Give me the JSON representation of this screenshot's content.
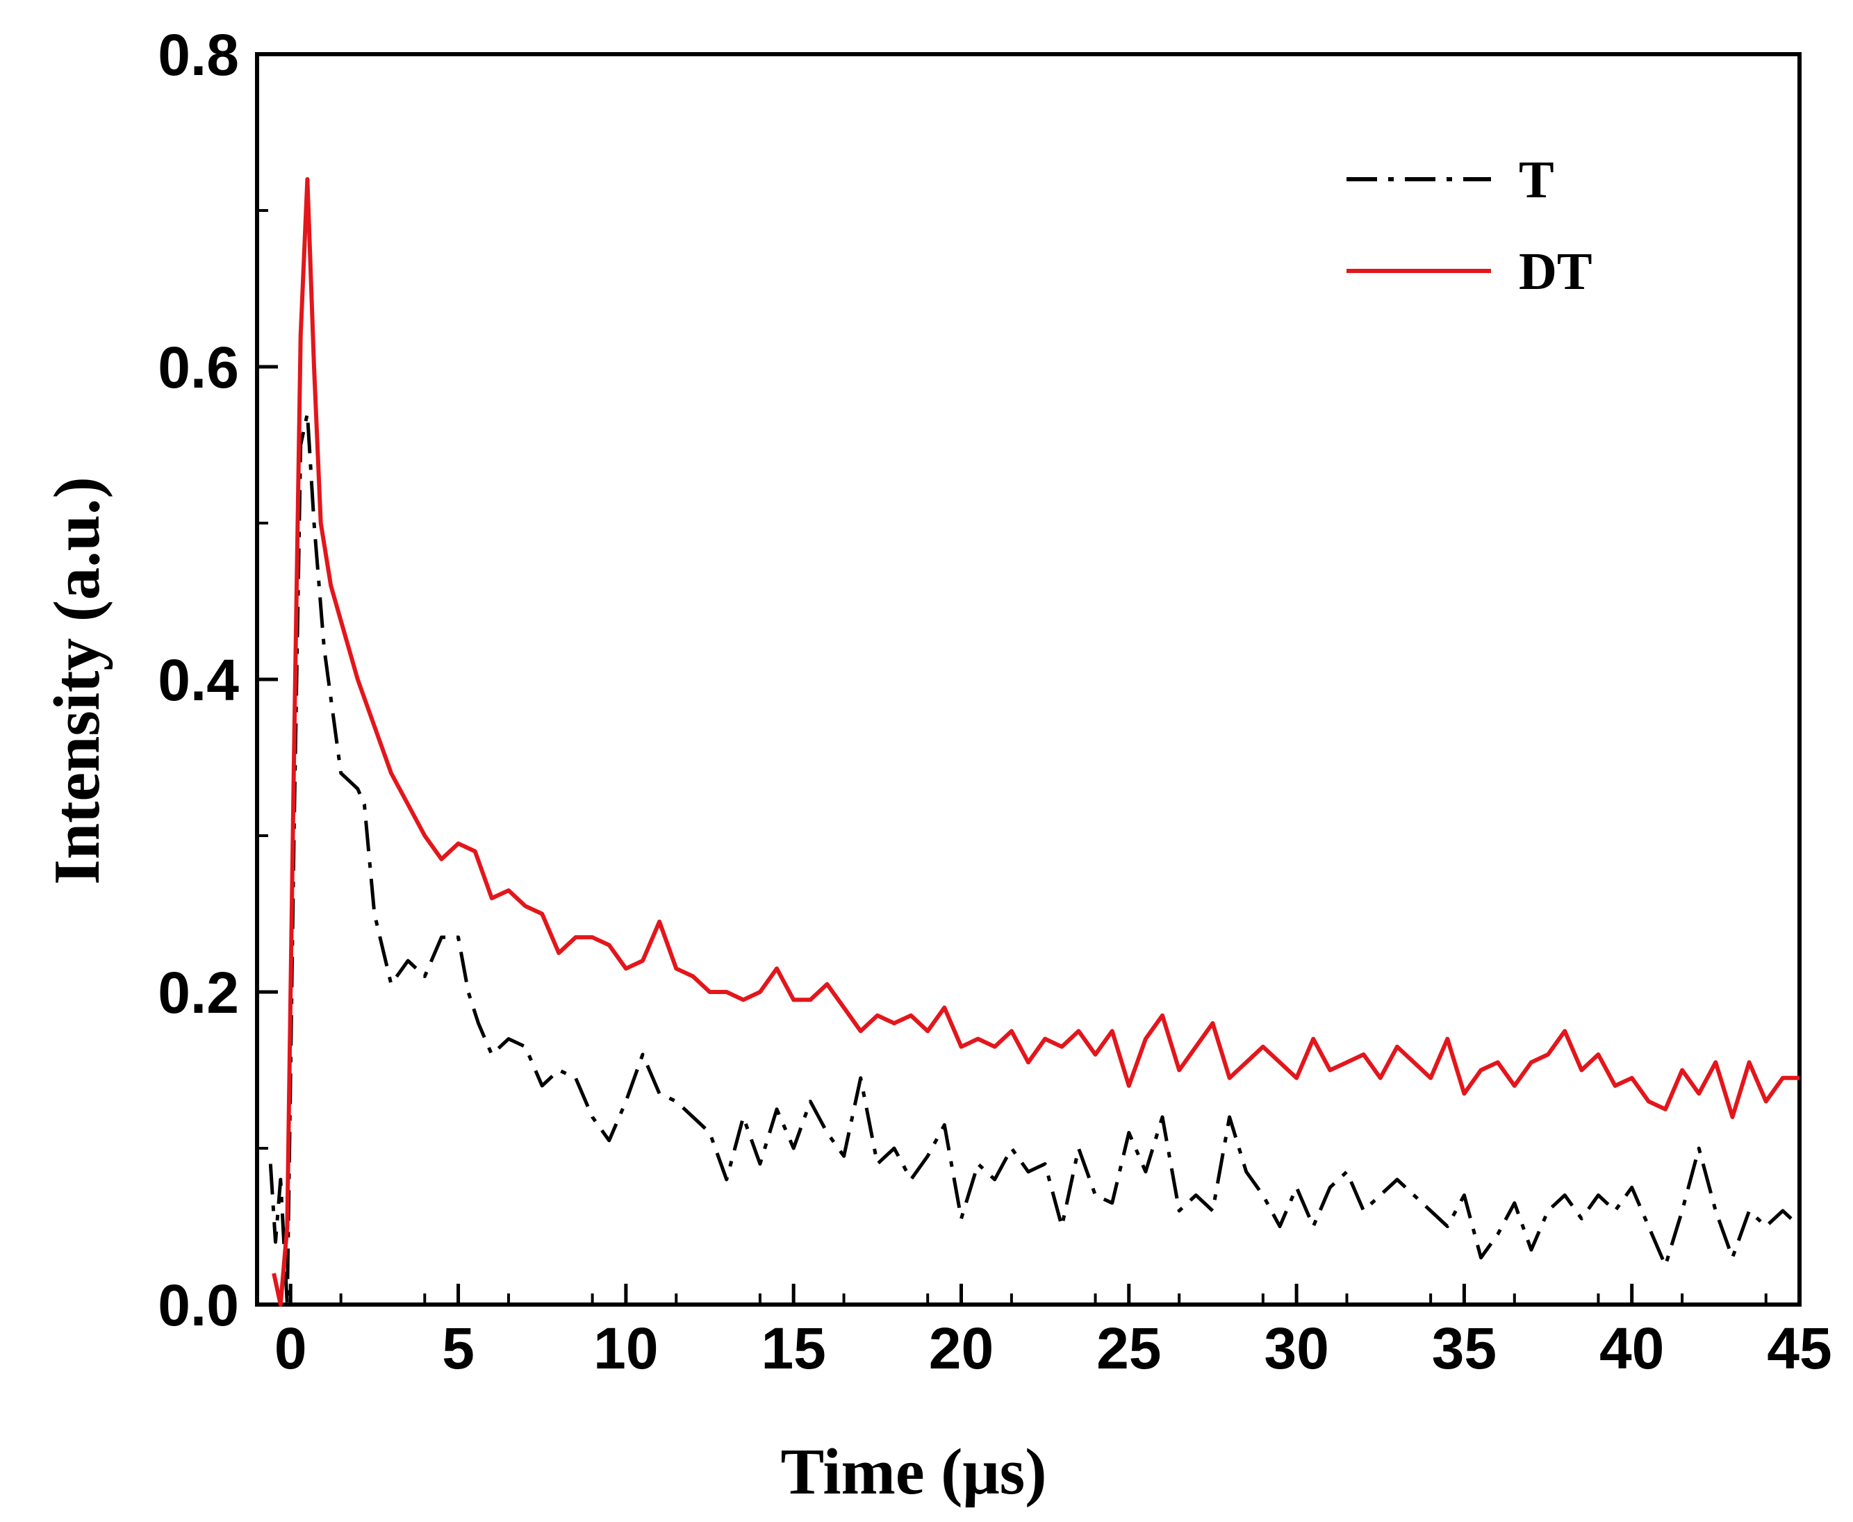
{
  "chart_data": {
    "type": "line",
    "title": "",
    "xlabel": "Time (μs)",
    "ylabel": "Intensity (a.u.)",
    "xlim": [
      -1,
      45
    ],
    "ylim": [
      0,
      0.8
    ],
    "xticks": [
      0,
      5,
      10,
      15,
      20,
      25,
      30,
      35,
      40,
      45
    ],
    "xtick_labels": [
      "0",
      "5",
      "10",
      "15",
      "20",
      "25",
      "30",
      "35",
      "40",
      "45"
    ],
    "yticks": [
      0.0,
      0.2,
      0.4,
      0.6,
      0.8
    ],
    "ytick_labels": [
      "0.0",
      "0.2",
      "0.4",
      "0.6",
      "0.8"
    ],
    "grid": false,
    "legend_position": "top-right",
    "series": [
      {
        "name": "T",
        "color": "#000000",
        "style": "dash-dot",
        "x": [
          -0.6,
          -0.45,
          -0.3,
          -0.1,
          0.1,
          0.3,
          0.5,
          0.7,
          1.0,
          1.5,
          2.0,
          2.2,
          2.5,
          3.0,
          3.5,
          4.0,
          4.5,
          5.0,
          5.3,
          5.6,
          6.0,
          6.5,
          7.0,
          7.5,
          8.0,
          8.5,
          9.0,
          9.5,
          10.0,
          10.5,
          11.0,
          11.5,
          12.0,
          12.5,
          13.0,
          13.5,
          14.0,
          14.5,
          15.0,
          15.5,
          16.0,
          16.5,
          17.0,
          17.5,
          18.0,
          18.5,
          19.0,
          19.5,
          20.0,
          20.5,
          21.0,
          21.5,
          22.0,
          22.5,
          23.0,
          23.5,
          24.0,
          24.5,
          25.0,
          25.5,
          26.0,
          26.5,
          27.0,
          27.5,
          28.0,
          28.5,
          29.0,
          29.5,
          30.0,
          30.5,
          31.0,
          31.5,
          32.0,
          32.5,
          33.0,
          33.5,
          34.0,
          34.5,
          35.0,
          35.5,
          36.0,
          36.5,
          37.0,
          37.5,
          38.0,
          38.5,
          39.0,
          39.5,
          40.0,
          40.5,
          41.0,
          41.5,
          42.0,
          42.5,
          43.0,
          43.5,
          44.0,
          44.5,
          45.0
        ],
        "values": [
          0.09,
          0.04,
          0.08,
          0.0,
          0.3,
          0.55,
          0.57,
          0.5,
          0.42,
          0.34,
          0.33,
          0.32,
          0.25,
          0.205,
          0.22,
          0.21,
          0.235,
          0.235,
          0.2,
          0.18,
          0.16,
          0.17,
          0.165,
          0.14,
          0.15,
          0.145,
          0.12,
          0.105,
          0.13,
          0.16,
          0.135,
          0.13,
          0.12,
          0.11,
          0.08,
          0.12,
          0.09,
          0.125,
          0.1,
          0.13,
          0.11,
          0.095,
          0.145,
          0.09,
          0.1,
          0.08,
          0.095,
          0.115,
          0.055,
          0.09,
          0.08,
          0.1,
          0.085,
          0.09,
          0.05,
          0.1,
          0.07,
          0.065,
          0.11,
          0.085,
          0.12,
          0.06,
          0.07,
          0.06,
          0.12,
          0.085,
          0.07,
          0.05,
          0.075,
          0.05,
          0.075,
          0.085,
          0.06,
          0.07,
          0.08,
          0.07,
          0.06,
          0.05,
          0.07,
          0.03,
          0.045,
          0.065,
          0.035,
          0.06,
          0.07,
          0.055,
          0.07,
          0.06,
          0.075,
          0.05,
          0.025,
          0.06,
          0.1,
          0.06,
          0.03,
          0.06,
          0.05,
          0.06,
          0.05
        ]
      },
      {
        "name": "DT",
        "color": "#e3161c",
        "style": "solid",
        "x": [
          -0.5,
          -0.3,
          -0.1,
          0.1,
          0.3,
          0.5,
          0.7,
          0.9,
          1.2,
          1.6,
          2.0,
          2.5,
          3.0,
          3.5,
          4.0,
          4.5,
          5.0,
          5.5,
          6.0,
          6.5,
          7.0,
          7.5,
          8.0,
          8.5,
          9.0,
          9.5,
          10.0,
          10.5,
          11.0,
          11.5,
          12.0,
          12.5,
          13.0,
          13.5,
          14.0,
          14.5,
          15.0,
          15.5,
          16.0,
          16.5,
          17.0,
          17.5,
          18.0,
          18.5,
          19.0,
          19.5,
          20.0,
          20.5,
          21.0,
          21.5,
          22.0,
          22.5,
          23.0,
          23.5,
          24.0,
          24.5,
          25.0,
          25.5,
          26.0,
          26.5,
          27.0,
          27.5,
          28.0,
          28.5,
          29.0,
          29.5,
          30.0,
          30.5,
          31.0,
          31.5,
          32.0,
          32.5,
          33.0,
          33.5,
          34.0,
          34.5,
          35.0,
          35.5,
          36.0,
          36.5,
          37.0,
          37.5,
          38.0,
          38.5,
          39.0,
          39.5,
          40.0,
          40.5,
          41.0,
          41.5,
          42.0,
          42.5,
          43.0,
          43.5,
          44.0,
          44.5,
          45.0
        ],
        "values": [
          0.02,
          0.0,
          0.05,
          0.35,
          0.62,
          0.72,
          0.6,
          0.5,
          0.46,
          0.43,
          0.4,
          0.37,
          0.34,
          0.32,
          0.3,
          0.285,
          0.295,
          0.29,
          0.26,
          0.265,
          0.255,
          0.25,
          0.225,
          0.235,
          0.235,
          0.23,
          0.215,
          0.22,
          0.245,
          0.215,
          0.21,
          0.2,
          0.2,
          0.195,
          0.2,
          0.215,
          0.195,
          0.195,
          0.205,
          0.19,
          0.175,
          0.185,
          0.18,
          0.185,
          0.175,
          0.19,
          0.165,
          0.17,
          0.165,
          0.175,
          0.155,
          0.17,
          0.165,
          0.175,
          0.16,
          0.175,
          0.14,
          0.17,
          0.185,
          0.15,
          0.165,
          0.18,
          0.145,
          0.155,
          0.165,
          0.155,
          0.145,
          0.17,
          0.15,
          0.155,
          0.16,
          0.145,
          0.165,
          0.155,
          0.145,
          0.17,
          0.135,
          0.15,
          0.155,
          0.14,
          0.155,
          0.16,
          0.175,
          0.15,
          0.16,
          0.14,
          0.145,
          0.13,
          0.125,
          0.15,
          0.135,
          0.155,
          0.12,
          0.155,
          0.13,
          0.145,
          0.145
        ]
      }
    ]
  }
}
